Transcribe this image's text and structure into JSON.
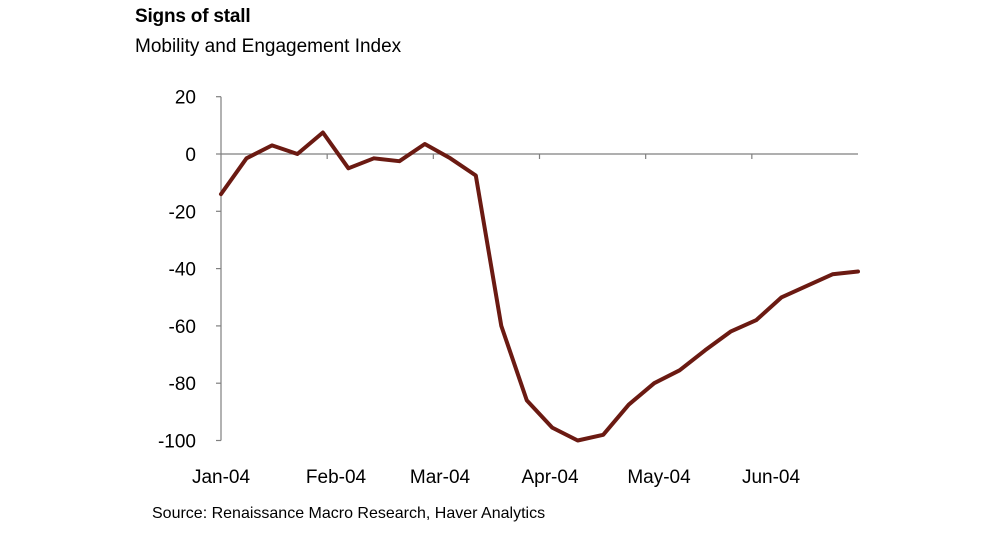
{
  "title": "Signs of stall",
  "subtitle": "Mobility and Engagement Index",
  "source": "Source: Renaissance Macro Research, Haver Analytics",
  "colors": {
    "line": "#6b1a12",
    "axis": "#7f7f7f"
  },
  "chart_data": {
    "type": "line",
    "title": "Signs of stall",
    "subtitle": "Mobility and Engagement Index",
    "xlabel": "",
    "ylabel": "",
    "ylim": [
      -100,
      20
    ],
    "yticks": [
      20,
      0,
      -20,
      -40,
      -60,
      -80,
      -100
    ],
    "xticks": [
      "Jan-04",
      "Feb-04",
      "Mar-04",
      "Apr-04",
      "May-04",
      "Jun-04"
    ],
    "grid": false,
    "legend": "none",
    "series": [
      {
        "x": [
          "2020-01-04",
          "2020-01-11",
          "2020-01-18",
          "2020-01-25",
          "2020-02-01",
          "2020-02-08",
          "2020-02-15",
          "2020-02-22",
          "2020-02-29",
          "2020-03-07",
          "2020-03-14",
          "2020-03-21",
          "2020-03-28",
          "2020-04-04",
          "2020-04-11",
          "2020-04-18",
          "2020-04-25",
          "2020-05-02",
          "2020-05-09",
          "2020-05-16",
          "2020-05-23",
          "2020-05-30",
          "2020-06-06",
          "2020-06-13",
          "2020-06-20",
          "2020-06-27"
        ],
        "values": [
          -14,
          -1.5,
          3,
          0,
          7.5,
          -5,
          -1.5,
          -2.5,
          3.5,
          -1.5,
          -7.5,
          -60,
          -86,
          -95.5,
          -100,
          -98,
          -87.5,
          -80,
          -75.5,
          -68.5,
          -62,
          -58,
          -50,
          -46,
          -42,
          -41
        ]
      }
    ]
  }
}
